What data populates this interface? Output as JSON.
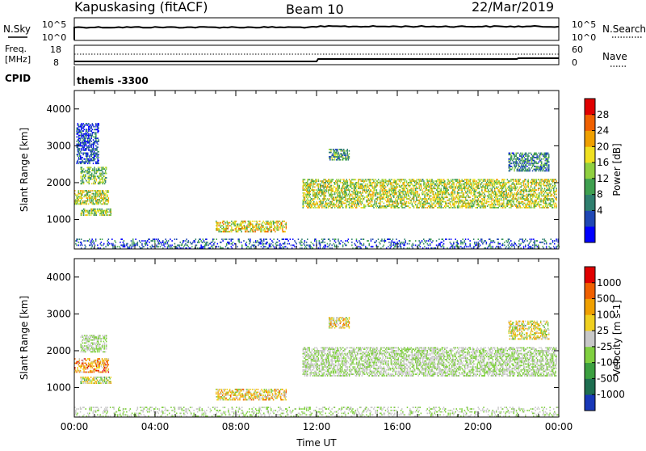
{
  "header": {
    "site": "Kapuskasing (fitACF)",
    "beam": "Beam 10",
    "date": "22/Mar/2019"
  },
  "panels": {
    "nsky": {
      "left_label": "N.Sky",
      "left_ticks": [
        "10^5",
        "10^0"
      ],
      "right_ticks": [
        "10^5",
        "10^0"
      ],
      "right_label": "N.Search"
    },
    "freq": {
      "left_label_1": "Freq.",
      "left_label_2": "[MHz]",
      "left_ticks": [
        "18",
        "8"
      ],
      "right_ticks": [
        "60",
        "0"
      ],
      "right_label": "Nave"
    },
    "cpid": {
      "label": "CPID",
      "value": "themis -3300"
    }
  },
  "chart_data": [
    {
      "type": "heatmap",
      "quantity": "power",
      "ylabel": "Slant Range [km]",
      "yticks": [
        "4000",
        "3000",
        "2000",
        "1000"
      ],
      "ylim": [
        200,
        4500
      ],
      "xlim": [
        0,
        24
      ],
      "colorbar": {
        "label": "Power [dB]",
        "ticks": [
          "28",
          "24",
          "20",
          "16",
          "12",
          "8",
          "4"
        ],
        "colors": [
          "#0000ff",
          "#1f47b4",
          "#2f7f6f",
          "#3fa050",
          "#90d040",
          "#f0e020",
          "#f0a000",
          "#f06000",
          "#e00000"
        ]
      },
      "echo_regions": [
        {
          "t0": 0.0,
          "t1": 1.7,
          "r0": 1400,
          "r1": 1800,
          "level": 0.55
        },
        {
          "t0": 0.3,
          "t1": 1.6,
          "r0": 1950,
          "r1": 2400,
          "level": 0.45
        },
        {
          "t0": 0.3,
          "t1": 1.8,
          "r0": 1100,
          "r1": 1280,
          "level": 0.5
        },
        {
          "t0": 0.1,
          "t1": 1.2,
          "r0": 2500,
          "r1": 3600,
          "level": 0.15
        },
        {
          "t0": 7.0,
          "t1": 10.5,
          "r0": 650,
          "r1": 950,
          "level": 0.6
        },
        {
          "t0": 11.3,
          "t1": 23.9,
          "r0": 1300,
          "r1": 2100,
          "level": 0.55
        },
        {
          "t0": 12.6,
          "t1": 13.6,
          "r0": 2600,
          "r1": 2900,
          "level": 0.35
        },
        {
          "t0": 21.5,
          "t1": 23.5,
          "r0": 2300,
          "r1": 2800,
          "level": 0.3
        },
        {
          "t0": 0.0,
          "t1": 24.0,
          "r0": 200,
          "r1": 450,
          "level": 0.2
        }
      ]
    },
    {
      "type": "heatmap",
      "quantity": "velocity",
      "ylabel": "Slant Range [km]",
      "yticks": [
        "4000",
        "3000",
        "2000",
        "1000"
      ],
      "ylim": [
        200,
        4500
      ],
      "xlim": [
        0,
        24
      ],
      "xlabel": "Time UT",
      "xticks": [
        "00:00",
        "04:00",
        "08:00",
        "12:00",
        "16:00",
        "20:00",
        "00:00"
      ],
      "colorbar": {
        "label": "Velocity [m s-1]",
        "ticks": [
          "1000",
          "500",
          "100",
          "25",
          "-25",
          "-100",
          "-500",
          "-1000"
        ],
        "colors": [
          "#1838b8",
          "#1e6e50",
          "#3ca040",
          "#80d040",
          "#c8c8c8",
          "#f0d020",
          "#f0a000",
          "#f06000",
          "#e00000"
        ]
      },
      "echo_regions": [
        {
          "t0": 0.0,
          "t1": 1.7,
          "r0": 1400,
          "r1": 1800,
          "level": 0.72
        },
        {
          "t0": 0.3,
          "t1": 1.6,
          "r0": 1950,
          "r1": 2400,
          "level": 0.45
        },
        {
          "t0": 0.3,
          "t1": 1.8,
          "r0": 1100,
          "r1": 1280,
          "level": 0.5
        },
        {
          "t0": 7.0,
          "t1": 10.5,
          "r0": 650,
          "r1": 950,
          "level": 0.6
        },
        {
          "t0": 11.3,
          "t1": 23.9,
          "r0": 1300,
          "r1": 2100,
          "level": 0.45
        },
        {
          "t0": 12.6,
          "t1": 13.6,
          "r0": 2600,
          "r1": 2900,
          "level": 0.62
        },
        {
          "t0": 21.5,
          "t1": 23.5,
          "r0": 2300,
          "r1": 2800,
          "level": 0.55
        },
        {
          "t0": 0.0,
          "t1": 24.0,
          "r0": 200,
          "r1": 450,
          "level": 0.45
        }
      ]
    }
  ]
}
